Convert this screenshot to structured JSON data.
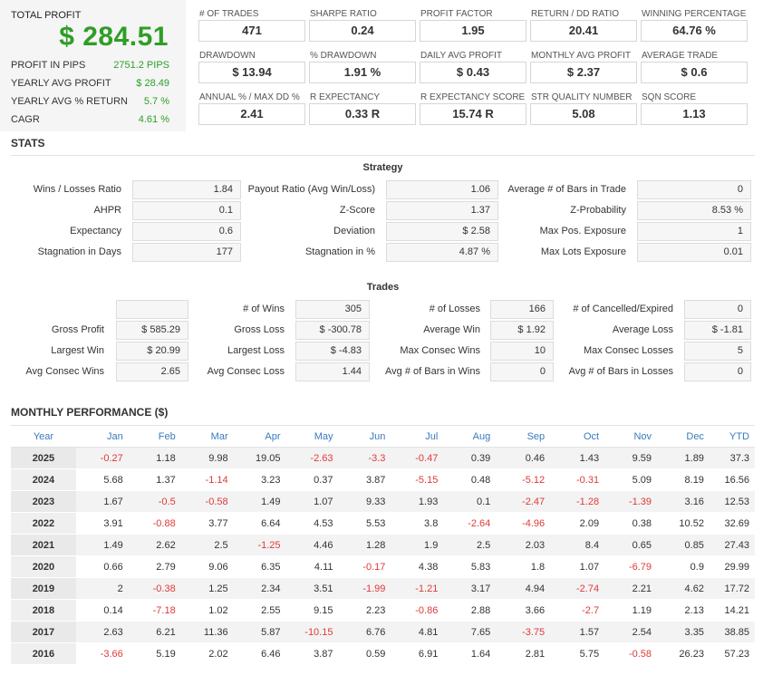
{
  "summary": {
    "total_profit_label": "TOTAL PROFIT",
    "total_profit_value": "$ 284.51",
    "rows": [
      {
        "label": "PROFIT IN PIPS",
        "value": "2751.2 PIPS"
      },
      {
        "label": "YEARLY AVG PROFIT",
        "value": "$ 28.49"
      },
      {
        "label": "YEARLY AVG % RETURN",
        "value": "5.7 %"
      },
      {
        "label": "CAGR",
        "value": "4.61 %"
      }
    ]
  },
  "metrics": [
    {
      "label": "# OF TRADES",
      "value": "471"
    },
    {
      "label": "SHARPE RATIO",
      "value": "0.24"
    },
    {
      "label": "PROFIT FACTOR",
      "value": "1.95"
    },
    {
      "label": "RETURN / DD RATIO",
      "value": "20.41"
    },
    {
      "label": "WINNING PERCENTAGE",
      "value": "64.76 %"
    },
    {
      "label": "DRAWDOWN",
      "value": "$ 13.94"
    },
    {
      "label": "% DRAWDOWN",
      "value": "1.91 %"
    },
    {
      "label": "DAILY AVG PROFIT",
      "value": "$ 0.43"
    },
    {
      "label": "MONTHLY AVG PROFIT",
      "value": "$ 2.37"
    },
    {
      "label": "AVERAGE TRADE",
      "value": "$ 0.6"
    },
    {
      "label": "ANNUAL % / MAX DD %",
      "value": "2.41"
    },
    {
      "label": "R EXPECTANCY",
      "value": "0.33 R"
    },
    {
      "label": "R EXPECTANCY SCORE",
      "value": "15.74 R"
    },
    {
      "label": "STR QUALITY NUMBER",
      "value": "5.08"
    },
    {
      "label": "SQN SCORE",
      "value": "1.13"
    }
  ],
  "stats": {
    "title": "STATS",
    "strategy_title": "Strategy",
    "strategy": [
      {
        "label": "Wins / Losses Ratio",
        "value": "1.84"
      },
      {
        "label": "Payout Ratio (Avg Win/Loss)",
        "value": "1.06"
      },
      {
        "label": "Average # of Bars in Trade",
        "value": "0"
      },
      {
        "label": "AHPR",
        "value": "0.1"
      },
      {
        "label": "Z-Score",
        "value": "1.37"
      },
      {
        "label": "Z-Probability",
        "value": "8.53 %"
      },
      {
        "label": "Expectancy",
        "value": "0.6"
      },
      {
        "label": "Deviation",
        "value": "$ 2.58"
      },
      {
        "label": "Max Pos. Exposure",
        "value": "1"
      },
      {
        "label": "Stagnation in Days",
        "value": "177"
      },
      {
        "label": "Stagnation in %",
        "value": "4.87 %"
      },
      {
        "label": "Max Lots Exposure",
        "value": "0.01"
      }
    ],
    "trades_title": "Trades",
    "trades": [
      {
        "label": "",
        "value": ""
      },
      {
        "label": "# of Wins",
        "value": "305"
      },
      {
        "label": "# of Losses",
        "value": "166"
      },
      {
        "label": "# of Cancelled/Expired",
        "value": "0"
      },
      {
        "label": "Gross Profit",
        "value": "$ 585.29"
      },
      {
        "label": "Gross Loss",
        "value": "$ -300.78"
      },
      {
        "label": "Average Win",
        "value": "$ 1.92"
      },
      {
        "label": "Average Loss",
        "value": "$ -1.81"
      },
      {
        "label": "Largest Win",
        "value": "$ 20.99"
      },
      {
        "label": "Largest Loss",
        "value": "$ -4.83"
      },
      {
        "label": "Max Consec Wins",
        "value": "10"
      },
      {
        "label": "Max Consec Losses",
        "value": "5"
      },
      {
        "label": "Avg Consec Wins",
        "value": "2.65"
      },
      {
        "label": "Avg Consec Loss",
        "value": "1.44"
      },
      {
        "label": "Avg # of Bars in Wins",
        "value": "0"
      },
      {
        "label": "Avg # of Bars in Losses",
        "value": "0"
      }
    ]
  },
  "monthly": {
    "title": "MONTHLY PERFORMANCE ($)",
    "headers": [
      "Year",
      "Jan",
      "Feb",
      "Mar",
      "Apr",
      "May",
      "Jun",
      "Jul",
      "Aug",
      "Sep",
      "Oct",
      "Nov",
      "Dec",
      "YTD"
    ],
    "rows": [
      [
        "2025",
        "-0.27",
        "1.18",
        "9.98",
        "19.05",
        "-2.63",
        "-3.3",
        "-0.47",
        "0.39",
        "0.46",
        "1.43",
        "9.59",
        "1.89",
        "37.3"
      ],
      [
        "2024",
        "5.68",
        "1.37",
        "-1.14",
        "3.23",
        "0.37",
        "3.87",
        "-5.15",
        "0.48",
        "-5.12",
        "-0.31",
        "5.09",
        "8.19",
        "16.56"
      ],
      [
        "2023",
        "1.67",
        "-0.5",
        "-0.58",
        "1.49",
        "1.07",
        "9.33",
        "1.93",
        "0.1",
        "-2.47",
        "-1.28",
        "-1.39",
        "3.16",
        "12.53"
      ],
      [
        "2022",
        "3.91",
        "-0.88",
        "3.77",
        "6.64",
        "4.53",
        "5.53",
        "3.8",
        "-2.64",
        "-4.96",
        "2.09",
        "0.38",
        "10.52",
        "32.69"
      ],
      [
        "2021",
        "1.49",
        "2.62",
        "2.5",
        "-1.25",
        "4.46",
        "1.28",
        "1.9",
        "2.5",
        "2.03",
        "8.4",
        "0.65",
        "0.85",
        "27.43"
      ],
      [
        "2020",
        "0.66",
        "2.79",
        "9.06",
        "6.35",
        "4.11",
        "-0.17",
        "4.38",
        "5.83",
        "1.8",
        "1.07",
        "-6.79",
        "0.9",
        "29.99"
      ],
      [
        "2019",
        "2",
        "-0.38",
        "1.25",
        "2.34",
        "3.51",
        "-1.99",
        "-1.21",
        "3.17",
        "4.94",
        "-2.74",
        "2.21",
        "4.62",
        "17.72"
      ],
      [
        "2018",
        "0.14",
        "-7.18",
        "1.02",
        "2.55",
        "9.15",
        "2.23",
        "-0.86",
        "2.88",
        "3.66",
        "-2.7",
        "1.19",
        "2.13",
        "14.21"
      ],
      [
        "2017",
        "2.63",
        "6.21",
        "11.36",
        "5.87",
        "-10.15",
        "6.76",
        "4.81",
        "7.65",
        "-3.75",
        "1.57",
        "2.54",
        "3.35",
        "38.85"
      ],
      [
        "2016",
        "-3.66",
        "5.19",
        "2.02",
        "6.46",
        "3.87",
        "0.59",
        "6.91",
        "1.64",
        "2.81",
        "5.75",
        "-0.58",
        "26.23",
        "57.23"
      ]
    ]
  }
}
